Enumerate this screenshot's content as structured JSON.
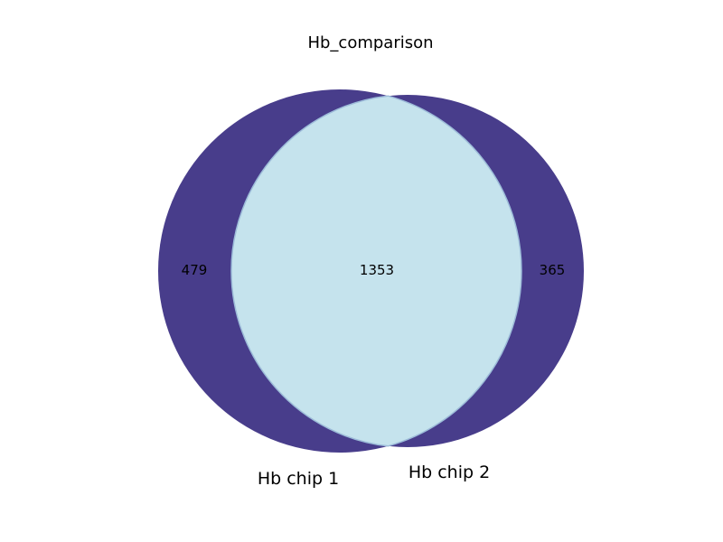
{
  "chart_data": {
    "type": "venn",
    "title": "Hb_comparison",
    "sets": [
      {
        "name": "Hb chip 1",
        "only": 479
      },
      {
        "name": "Hb chip 2",
        "only": 365
      }
    ],
    "intersection": 1353,
    "colors": {
      "set_only": "#483D8B",
      "intersection": "#C5E3ED",
      "intersection_edge": "#9DBCD9"
    }
  }
}
